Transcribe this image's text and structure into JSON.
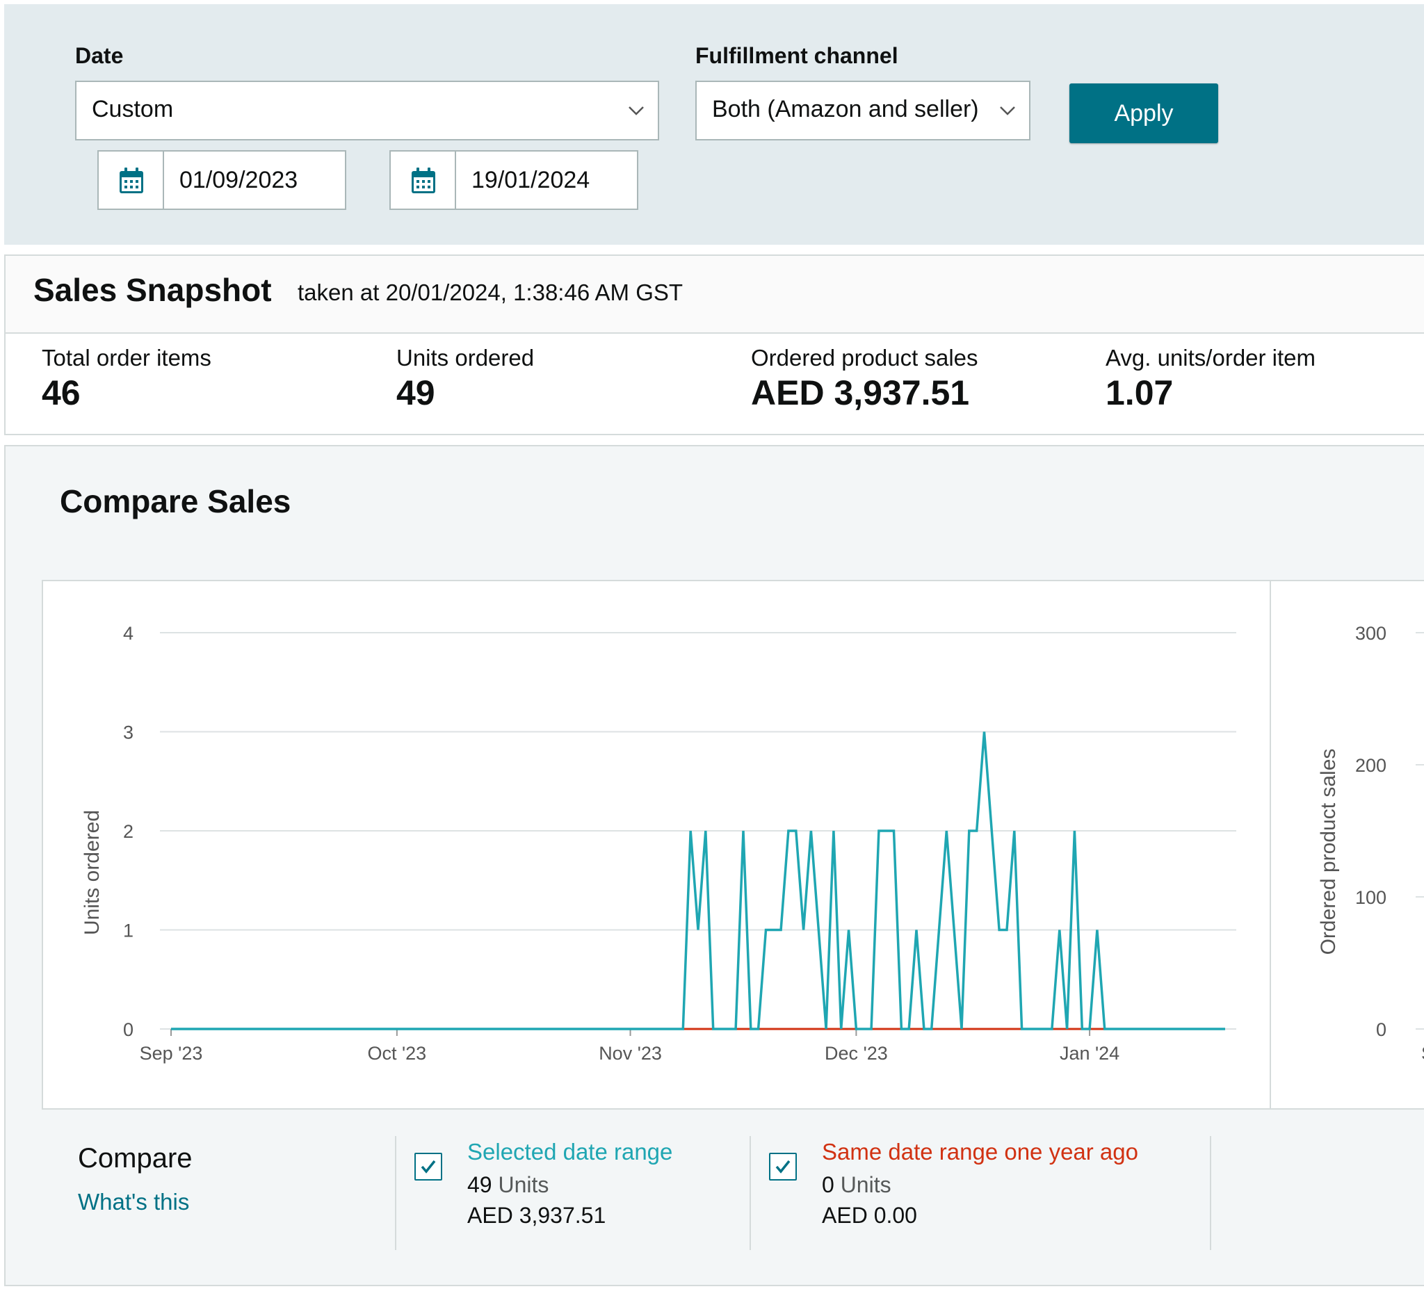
{
  "filters": {
    "date_label": "Date",
    "date_select_value": "Custom",
    "channel_label": "Fulfillment channel",
    "channel_select_value": "Both (Amazon and seller)",
    "start_date": "01/09/2023",
    "end_date": "19/01/2024",
    "apply_label": "Apply"
  },
  "snapshot": {
    "title": "Sales Snapshot",
    "taken_at": "taken at 20/01/2024, 1:38:46 AM GST",
    "metrics": [
      {
        "label": "Total order items",
        "value": "46"
      },
      {
        "label": "Units ordered",
        "value": "49"
      },
      {
        "label": "Ordered product sales",
        "value": "AED 3,937.51"
      },
      {
        "label": "Avg. units/order item",
        "value": "1.07"
      }
    ]
  },
  "compare_sales": {
    "title": "Compare Sales",
    "compare_label": "Compare",
    "whats_this": "What's this",
    "legend": [
      {
        "name": "Selected date range",
        "units_value": "49",
        "units_word": "Units",
        "sales": "AED 3,937.51",
        "color": "#1fa6b2",
        "checked": true
      },
      {
        "name": "Same date range one year ago",
        "units_value": "0",
        "units_word": "Units",
        "sales": "AED 0.00",
        "color": "#d13212",
        "checked": true
      }
    ]
  },
  "colors": {
    "accent": "#007185",
    "current_series": "#1fa6b2",
    "previous_series": "#d13212"
  },
  "chart_data": [
    {
      "type": "line",
      "ylabel": "Units ordered",
      "ylim": [
        0,
        4
      ],
      "yticks": [
        "0",
        "1",
        "2",
        "3",
        "4"
      ],
      "xticks": [
        {
          "label": "Sep '23",
          "date": "2023-09-01"
        },
        {
          "label": "Oct '23",
          "date": "2023-10-01"
        },
        {
          "label": "Nov '23",
          "date": "2023-11-01"
        },
        {
          "label": "Dec '23",
          "date": "2023-12-01"
        },
        {
          "label": "Jan '24",
          "date": "2024-01-01"
        }
      ],
      "grid": true,
      "series": [
        {
          "name": "Selected date range",
          "color": "#1fa6b2",
          "points": [
            [
              "2023-09-01",
              0
            ],
            [
              "2023-11-08",
              0
            ],
            [
              "2023-11-09",
              2
            ],
            [
              "2023-11-10",
              1
            ],
            [
              "2023-11-11",
              2
            ],
            [
              "2023-11-12",
              0
            ],
            [
              "2023-11-15",
              0
            ],
            [
              "2023-11-16",
              2
            ],
            [
              "2023-11-17",
              0
            ],
            [
              "2023-11-18",
              0
            ],
            [
              "2023-11-19",
              1
            ],
            [
              "2023-11-20",
              1
            ],
            [
              "2023-11-21",
              1
            ],
            [
              "2023-11-22",
              2
            ],
            [
              "2023-11-23",
              2
            ],
            [
              "2023-11-24",
              1
            ],
            [
              "2023-11-25",
              2
            ],
            [
              "2023-11-26",
              1
            ],
            [
              "2023-11-27",
              0
            ],
            [
              "2023-11-28",
              2
            ],
            [
              "2023-11-29",
              0
            ],
            [
              "2023-11-30",
              1
            ],
            [
              "2023-12-01",
              0
            ],
            [
              "2023-12-03",
              0
            ],
            [
              "2023-12-04",
              2
            ],
            [
              "2023-12-05",
              2
            ],
            [
              "2023-12-06",
              2
            ],
            [
              "2023-12-07",
              0
            ],
            [
              "2023-12-08",
              0
            ],
            [
              "2023-12-09",
              1
            ],
            [
              "2023-12-10",
              0
            ],
            [
              "2023-12-11",
              0
            ],
            [
              "2023-12-13",
              2
            ],
            [
              "2023-12-14",
              1
            ],
            [
              "2023-12-15",
              0
            ],
            [
              "2023-12-16",
              2
            ],
            [
              "2023-12-17",
              2
            ],
            [
              "2023-12-18",
              3
            ],
            [
              "2023-12-19",
              2
            ],
            [
              "2023-12-20",
              1
            ],
            [
              "2023-12-21",
              1
            ],
            [
              "2023-12-22",
              2
            ],
            [
              "2023-12-23",
              0
            ],
            [
              "2023-12-27",
              0
            ],
            [
              "2023-12-28",
              1
            ],
            [
              "2023-12-29",
              0
            ],
            [
              "2023-12-30",
              2
            ],
            [
              "2023-12-31",
              0
            ],
            [
              "2024-01-01",
              0
            ],
            [
              "2024-01-02",
              1
            ],
            [
              "2024-01-03",
              0
            ],
            [
              "2024-01-19",
              0
            ]
          ]
        },
        {
          "name": "Same date range one year ago",
          "color": "#d13212",
          "points": [
            [
              "2023-11-08",
              0
            ],
            [
              "2024-01-03",
              0
            ]
          ]
        }
      ]
    },
    {
      "type": "line",
      "ylabel": "Ordered product sales",
      "ylim": [
        0,
        300
      ],
      "yticks": [
        "0",
        "100",
        "200",
        "300"
      ],
      "xticks": [
        {
          "label": "Sep",
          "date": "2023-09-01"
        }
      ],
      "grid": true,
      "series": []
    }
  ]
}
